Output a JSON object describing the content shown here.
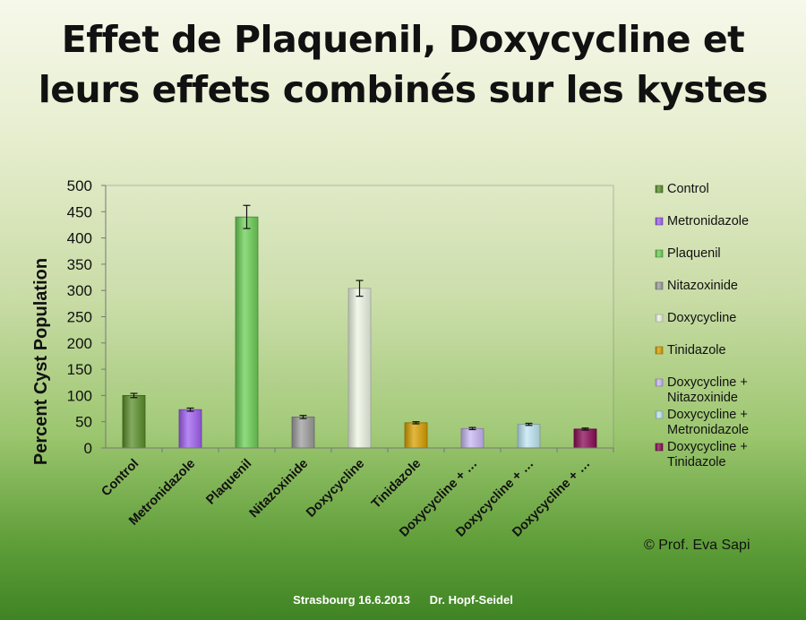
{
  "slide": {
    "title_line1": "Effet de Plaquenil, Doxycycline et",
    "title_line2": "leurs effets combinés sur les kystes",
    "copyright": "© Prof. Eva Sapi",
    "footer_place_date": "Strasbourg 16.6.2013",
    "footer_author": "Dr. Hopf-Seidel"
  },
  "chart_data": {
    "type": "bar",
    "ylabel": "Percent Cyst Population",
    "xlabel": "",
    "ylim": [
      0,
      500
    ],
    "yticks": [
      0,
      50,
      100,
      150,
      200,
      250,
      300,
      350,
      400,
      450,
      500
    ],
    "grid": false,
    "legend_position": "right",
    "series": [
      {
        "name": "Control",
        "axis_label": "Control",
        "value": 100,
        "error": 4,
        "color": "#5a8f2a"
      },
      {
        "name": "Metronidazole",
        "axis_label": "Metronidazole",
        "value": 73,
        "error": 3,
        "color": "#a060f0"
      },
      {
        "name": "Plaquenil",
        "axis_label": "Plaquenil",
        "value": 440,
        "error": 22,
        "color": "#6ccf55"
      },
      {
        "name": "Nitazoxinide",
        "axis_label": "Nitazoxinide",
        "value": 59,
        "error": 3,
        "color": "#9d9d9d"
      },
      {
        "name": "Doxycycline",
        "axis_label": "Doxycycline",
        "value": 304,
        "error": 15,
        "color": "#eef7e6"
      },
      {
        "name": "Tinidazole",
        "axis_label": "Tinidazole",
        "value": 48,
        "error": 2,
        "color": "#d8a000"
      },
      {
        "name": "Doxycycline + Nitazoxinide",
        "axis_label": "Doxycycline + …",
        "value": 37,
        "error": 2,
        "color": "#c8b8f4"
      },
      {
        "name": "Doxycycline + Metronidazole",
        "axis_label": "Doxycycline + …",
        "value": 45,
        "error": 2,
        "color": "#bfe6f4"
      },
      {
        "name": "Doxycycline + Tinidazole",
        "axis_label": "Doxycycline + …",
        "value": 36,
        "error": 2,
        "color": "#8a0a55"
      }
    ]
  }
}
